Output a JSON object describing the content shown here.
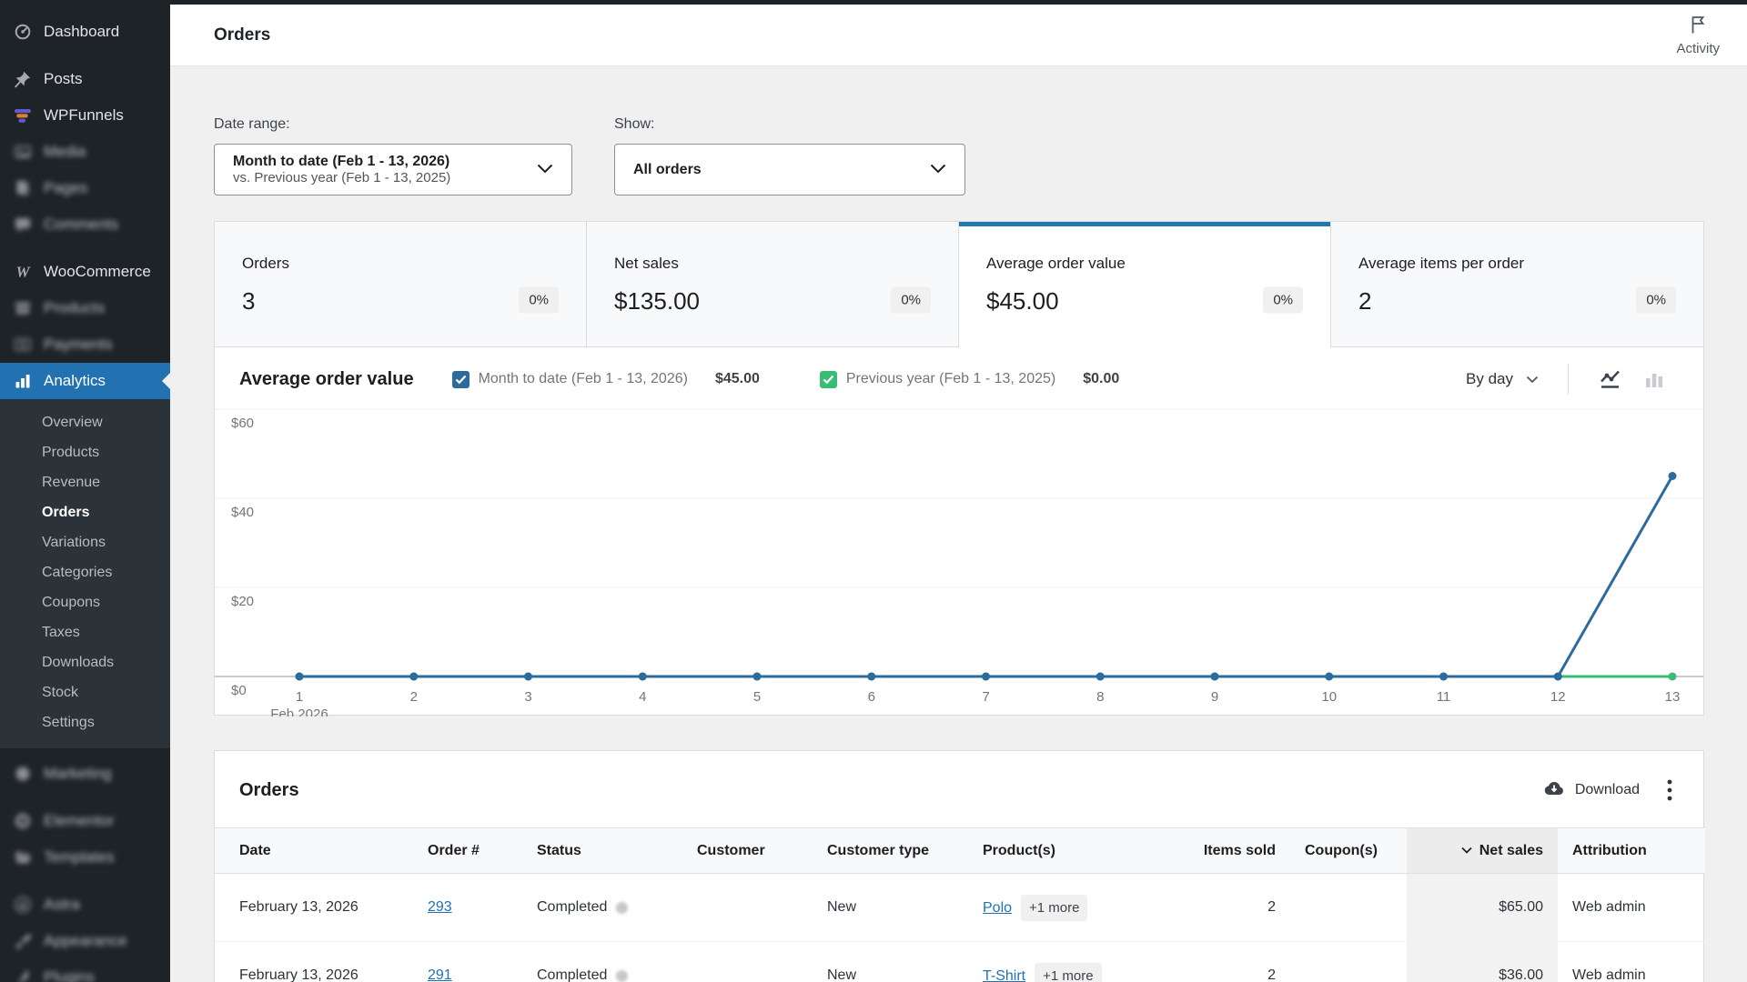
{
  "colors": {
    "sidebar_bg": "#1d2327",
    "submenu_bg": "#2c3338",
    "active_menu": "#2271b1",
    "selected_tab_accent": "#1f7bab",
    "content_bg": "#f0f0f1",
    "link": "#2271b1",
    "chart_blue": "#2c6b9d",
    "chart_green": "#39bd73"
  },
  "sidebar": {
    "items": [
      {
        "label": "Dashboard",
        "icon": "dashboard-icon",
        "blurred": false
      },
      {
        "label": "Posts",
        "icon": "pushpin-icon",
        "blurred": false
      },
      {
        "label": "WPFunnels",
        "icon": "funnel-icon",
        "blurred": false
      },
      {
        "label": "Media",
        "icon": "media-icon",
        "blurred": true
      },
      {
        "label": "Pages",
        "icon": "pages-icon",
        "blurred": true
      },
      {
        "label": "Comments",
        "icon": "comment-icon",
        "blurred": true
      },
      {
        "label": "WooCommerce",
        "icon": "woocommerce-icon",
        "blurred": false
      },
      {
        "label": "Products",
        "icon": "products-icon",
        "blurred": true
      },
      {
        "label": "Payments",
        "icon": "payments-icon",
        "blurred": true
      },
      {
        "label": "Analytics",
        "icon": "bar-chart-icon",
        "blurred": false,
        "active": true
      }
    ],
    "analytics_submenu": [
      {
        "label": "Overview"
      },
      {
        "label": "Products"
      },
      {
        "label": "Revenue"
      },
      {
        "label": "Orders",
        "active": true
      },
      {
        "label": "Variations"
      },
      {
        "label": "Categories"
      },
      {
        "label": "Coupons"
      },
      {
        "label": "Taxes"
      },
      {
        "label": "Downloads"
      },
      {
        "label": "Stock"
      },
      {
        "label": "Settings"
      }
    ],
    "items_bottom": [
      {
        "label": "Marketing",
        "icon": "megaphone-icon",
        "blurred": true
      },
      {
        "label": "Elementor",
        "icon": "elementor-icon",
        "blurred": true
      },
      {
        "label": "Templates",
        "icon": "folder-icon",
        "blurred": true
      },
      {
        "label": "Astra",
        "icon": "astra-icon",
        "blurred": true
      },
      {
        "label": "Appearance",
        "icon": "brush-icon",
        "blurred": true
      },
      {
        "label": "Plugins",
        "icon": "plug-icon",
        "blurred": true
      }
    ]
  },
  "topbar": {
    "title": "Orders",
    "activity_label": "Activity"
  },
  "filters": {
    "date_range_label": "Date range:",
    "date_range_value": "Month to date (Feb 1 - 13, 2026)",
    "date_range_compare": "vs. Previous year (Feb 1 - 13, 2025)",
    "show_label": "Show:",
    "show_value": "All orders"
  },
  "summary_cards": [
    {
      "label": "Orders",
      "value": "3",
      "delta": "0%",
      "selected": false
    },
    {
      "label": "Net sales",
      "value": "$135.00",
      "delta": "0%",
      "selected": false
    },
    {
      "label": "Average order value",
      "value": "$45.00",
      "delta": "0%",
      "selected": true
    },
    {
      "label": "Average items per order",
      "value": "2",
      "delta": "0%",
      "selected": false
    }
  ],
  "chart_panel": {
    "title": "Average order value",
    "legend": [
      {
        "label": "Month to date (Feb 1 - 13, 2026)",
        "value": "$45.00",
        "color": "#2c6b9d",
        "checked": true
      },
      {
        "label": "Previous year (Feb 1 - 13, 2025)",
        "value": "$0.00",
        "color": "#39bd73",
        "checked": true
      }
    ],
    "interval": "By day"
  },
  "chart_data": {
    "type": "line",
    "title": "Average order value",
    "x": [
      "1",
      "2",
      "3",
      "4",
      "5",
      "6",
      "7",
      "8",
      "9",
      "10",
      "11",
      "12",
      "13"
    ],
    "x_axis_label_first": "Feb 2026",
    "xlabel": "",
    "ylabel": "",
    "ylim": [
      0,
      60
    ],
    "y_ticks": [
      {
        "v": 0,
        "label": "$0"
      },
      {
        "v": 20,
        "label": "$20"
      },
      {
        "v": 40,
        "label": "$40"
      },
      {
        "v": 60,
        "label": "$60"
      }
    ],
    "grid": true,
    "legend_position": "top",
    "series": [
      {
        "name": "Month to date (Feb 1 - 13, 2026)",
        "color": "#2c6b9d",
        "values": [
          0,
          0,
          0,
          0,
          0,
          0,
          0,
          0,
          0,
          0,
          0,
          0,
          45
        ]
      },
      {
        "name": "Previous year (Feb 1 - 13, 2025)",
        "color": "#39bd73",
        "values": [
          0,
          0,
          0,
          0,
          0,
          0,
          0,
          0,
          0,
          0,
          0,
          0,
          0
        ]
      }
    ]
  },
  "orders_table": {
    "title": "Orders",
    "download_label": "Download",
    "columns": [
      {
        "label": "Date"
      },
      {
        "label": "Order #"
      },
      {
        "label": "Status"
      },
      {
        "label": "Customer"
      },
      {
        "label": "Customer type"
      },
      {
        "label": "Product(s)"
      },
      {
        "label": "Items sold",
        "align": "right"
      },
      {
        "label": "Coupon(s)"
      },
      {
        "label": "Net sales",
        "align": "right",
        "sorted": "desc"
      },
      {
        "label": "Attribution"
      }
    ],
    "rows": [
      {
        "date": "February 13, 2026",
        "order": "293",
        "status": "Completed",
        "customer": "",
        "customer_type": "New",
        "product": "Polo",
        "more": "+1 more",
        "items_sold": "2",
        "coupons": "",
        "net_sales": "$65.00",
        "attribution": "Web admin"
      },
      {
        "date": "February 13, 2026",
        "order": "291",
        "status": "Completed",
        "customer": "",
        "customer_type": "New",
        "product": "T-Shirt",
        "more": "+1 more",
        "items_sold": "2",
        "coupons": "",
        "net_sales": "$36.00",
        "attribution": "Web admin"
      }
    ]
  }
}
